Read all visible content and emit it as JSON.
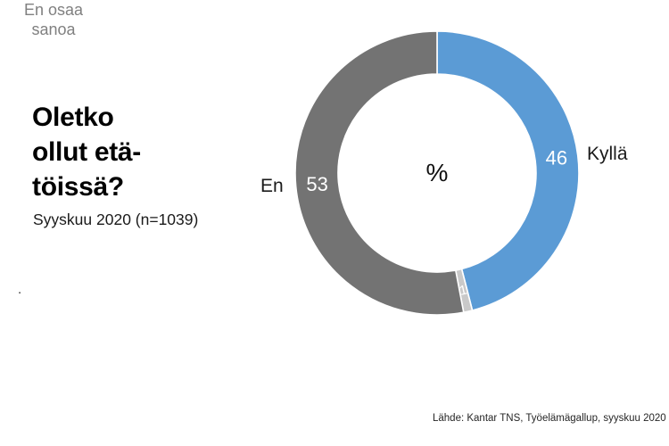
{
  "title": "Oletko\nollut etä-\ntöissä?",
  "subtitle": "Syyskuu 2020 (n=1039)",
  "stray_text": ".",
  "source": "Lähde: Kantar TNS, Työelämägallup, syyskuu 2020",
  "chart_data": {
    "type": "pie",
    "subtype": "donut",
    "title": "Oletko ollut etätöissä?",
    "subtitle": "Syyskuu 2020 (n=1039)",
    "unit": "%",
    "center_label": "%",
    "start_angle_deg": 0,
    "direction": "clockwise",
    "inner_radius_ratio": 0.7,
    "total": 100,
    "legend_position": "around-slices",
    "segments": [
      {
        "label": "Kyllä",
        "value": 46,
        "color": "#5B9BD5",
        "value_text_color": "#FFFFFF"
      },
      {
        "label": "En osaa sanoa",
        "value": 1,
        "color": "#C9C9C9",
        "value_text_color": "#FFFFFF"
      },
      {
        "label": "En",
        "value": 53,
        "color": "#737373",
        "value_text_color": "#FFFFFF"
      }
    ]
  }
}
